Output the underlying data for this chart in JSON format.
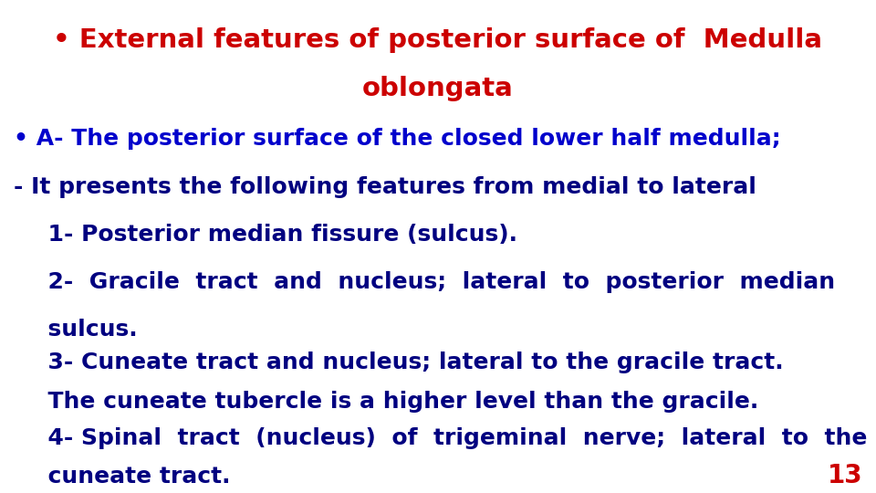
{
  "background_color": "#ffffff",
  "title_line1": "• External features of posterior surface of  Medulla",
  "title_line2": "oblongata",
  "title_color": "#cc0000",
  "line2_text": "• A- The posterior surface of the closed lower half medulla;",
  "line2_color": "#0000cc",
  "line3": "- It presents the following features from medial to lateral",
  "line3_color": "#000080",
  "line4": "  1- Posterior median fissure (sulcus).",
  "line4_color": "#000080",
  "line5": "  2-  Gracile  tract  and  nucleus;  lateral  to  posterior  median",
  "line5_color": "#000080",
  "line6": "  sulcus.",
  "line6_color": "#000080",
  "line7": "  3- Cuneate tract and nucleus; lateral to the gracile tract.",
  "line7_color": "#000080",
  "line8": "  The cuneate tubercle is a higher level than the gracile.",
  "line8_color": "#000080",
  "line9": "  4- Spinal  tract  (nucleus)  of  trigeminal  nerve;  lateral  to  the",
  "line9_color": "#000080",
  "line10": "  cuneate tract.",
  "line10_color": "#000080",
  "page_number": "13",
  "page_number_color": "#cc0000",
  "font_size_title": 21,
  "font_size_body": 18,
  "font_size_page": 20
}
